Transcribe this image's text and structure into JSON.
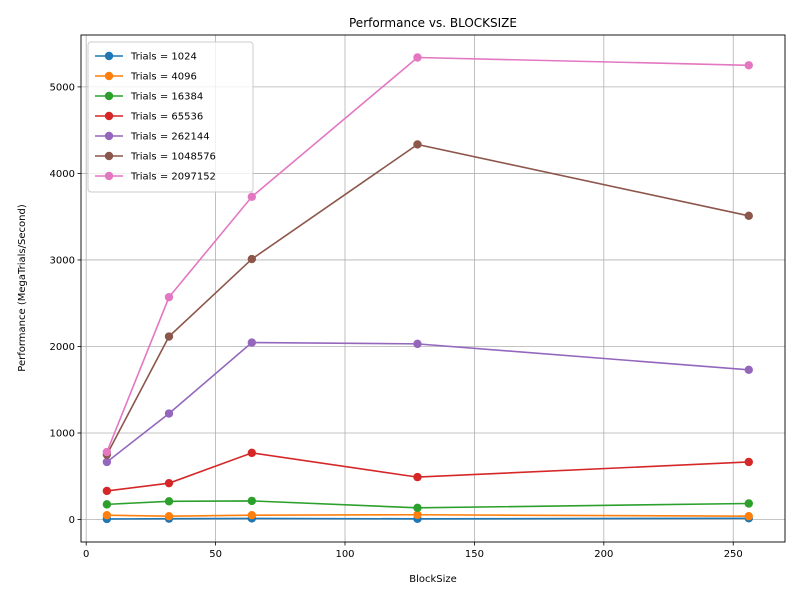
{
  "chart_data": {
    "type": "line",
    "title": "Performance vs. BLOCKSIZE",
    "xlabel": "BlockSize",
    "ylabel": "Performance (MegaTrials/Second)",
    "xlim": [
      -2,
      270
    ],
    "ylim": [
      -260,
      5600
    ],
    "x_ticks": [
      0,
      50,
      100,
      150,
      200,
      250
    ],
    "x_tick_labels": [
      "0",
      "50",
      "100",
      "150",
      "200",
      "250"
    ],
    "y_ticks": [
      0,
      1000,
      2000,
      3000,
      4000,
      5000
    ],
    "y_tick_labels": [
      "0",
      "1000",
      "2000",
      "3000",
      "4000",
      "5000"
    ],
    "grid": true,
    "legend_position": "top-left",
    "x": [
      8,
      32,
      64,
      128,
      256
    ],
    "series": [
      {
        "name": "Trials = 1024",
        "color": "#1f77b4",
        "values": [
          6,
          10,
          12,
          8,
          14
        ]
      },
      {
        "name": "Trials = 4096",
        "color": "#ff7f0e",
        "values": [
          50,
          38,
          50,
          55,
          38
        ]
      },
      {
        "name": "Trials = 16384",
        "color": "#2ca02c",
        "values": [
          175,
          210,
          215,
          135,
          185
        ]
      },
      {
        "name": "Trials = 65536",
        "color": "#d62728",
        "values": [
          330,
          420,
          770,
          490,
          665
        ]
      },
      {
        "name": "Trials = 262144",
        "color": "#9467bd",
        "values": [
          665,
          1225,
          2045,
          2030,
          1730
        ]
      },
      {
        "name": "Trials = 1048576",
        "color": "#8c564b",
        "values": [
          750,
          2115,
          3010,
          4335,
          3510
        ]
      },
      {
        "name": "Trials = 2097152",
        "color": "#e377c2",
        "values": [
          780,
          2570,
          3730,
          5340,
          5250
        ]
      }
    ]
  }
}
